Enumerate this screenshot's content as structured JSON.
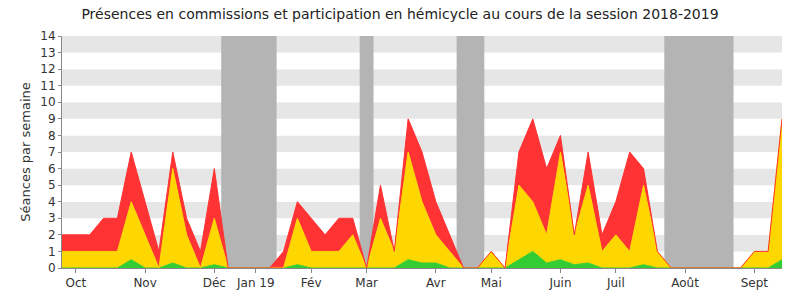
{
  "chart_data": {
    "type": "area",
    "stacked": true,
    "title": "Présences en commissions et participation en hémicycle au cours de la session 2018-2019",
    "y_label": "Séances par semaine",
    "categories": [
      null,
      "Oct",
      null,
      null,
      null,
      null,
      "Nov",
      null,
      null,
      null,
      null,
      "Déc",
      null,
      null,
      "Jan 19",
      null,
      null,
      null,
      "Fév",
      null,
      null,
      null,
      "Mar",
      null,
      null,
      null,
      null,
      "Avr",
      null,
      null,
      null,
      "Mai",
      null,
      null,
      null,
      null,
      "Juin",
      null,
      null,
      null,
      "Juil",
      null,
      null,
      null,
      null,
      "Août",
      null,
      null,
      null,
      null,
      "Sept",
      null,
      null
    ],
    "series": [
      {
        "color": "#33cc33",
        "values": [
          0,
          0,
          0,
          0,
          0,
          0.5,
          0,
          0,
          0.3,
          0,
          0,
          0.2,
          0,
          0,
          0,
          0,
          0,
          0.2,
          0,
          0,
          0,
          0,
          0,
          0,
          0,
          0.5,
          0.3,
          0.3,
          0,
          0,
          0,
          0,
          0,
          0.5,
          1,
          0.3,
          0.5,
          0.2,
          0.3,
          0,
          0,
          0,
          0.2,
          0,
          0,
          0,
          0,
          0,
          0,
          0,
          0,
          0,
          0.5
        ]
      },
      {
        "color": "#ffd700",
        "values": [
          1,
          1,
          1,
          1,
          1,
          3.5,
          2,
          0,
          5.7,
          2,
          0,
          2.8,
          0,
          0,
          0,
          0,
          0,
          2.8,
          1,
          1,
          1,
          2,
          0,
          3,
          1,
          6.5,
          3.7,
          1.7,
          1,
          0,
          0,
          1,
          0,
          4.5,
          3,
          1.7,
          6.5,
          1.8,
          4.7,
          1,
          2,
          1,
          4.8,
          1,
          0,
          0,
          0,
          0,
          0,
          0,
          1,
          1,
          8.5
        ]
      },
      {
        "color": "#ff3333",
        "values": [
          1,
          1,
          1,
          2,
          2,
          3,
          2,
          1,
          1,
          1,
          1,
          3,
          0,
          0,
          0,
          0,
          1,
          1,
          2,
          1,
          2,
          1,
          0,
          2,
          0,
          2,
          3,
          2,
          1,
          0,
          0,
          0,
          0,
          2,
          5,
          4,
          1,
          0,
          2,
          1,
          2,
          6,
          1,
          0,
          0,
          0,
          0,
          0,
          0,
          0,
          0,
          0,
          0
        ]
      }
    ],
    "highlight_ranges": [
      [
        11.5,
        15.5
      ],
      [
        21.5,
        22.5
      ],
      [
        28.5,
        30.5
      ],
      [
        43.5,
        48.5
      ]
    ],
    "ylim": [
      0,
      14
    ],
    "yticks": [
      0,
      1,
      2,
      3,
      4,
      5,
      6,
      7,
      8,
      9,
      10,
      11,
      12,
      13,
      14
    ],
    "grid": true
  }
}
